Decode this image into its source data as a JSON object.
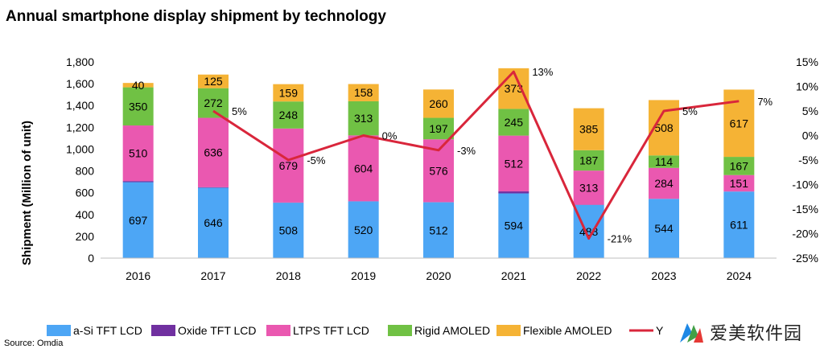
{
  "title": "Annual smartphone display shipment by technology",
  "source": "Source: Omdia",
  "watermark_text": "爱美软件园",
  "chart_data": {
    "type": "bar",
    "stacked": true,
    "categories": [
      "2016",
      "2017",
      "2018",
      "2019",
      "2020",
      "2021",
      "2022",
      "2023",
      "2024"
    ],
    "ylabel": "Shipment (Million of unit)",
    "ylim": [
      0,
      1800
    ],
    "y_ticks": [
      "0",
      "200",
      "400",
      "600",
      "800",
      "1,000",
      "1,200",
      "1,400",
      "1,600",
      "1,800"
    ],
    "y2lim": [
      -25,
      15
    ],
    "y2_ticks": [
      "-25%",
      "-20%",
      "-15%",
      "-10%",
      "-5%",
      "0%",
      "5%",
      "10%",
      "15%"
    ],
    "grid": false,
    "legend_position": "bottom",
    "series": [
      {
        "name": "a-Si TFT LCD",
        "color": "#4DA6F5",
        "values": [
          697,
          646,
          508,
          520,
          512,
          594,
          488,
          544,
          611
        ],
        "labels": [
          "697",
          "646",
          "508",
          "520",
          "512",
          "594",
          "488",
          "544",
          "611"
        ]
      },
      {
        "name": "Oxide TFT LCD",
        "color": "#7030A0",
        "values": [
          10,
          5,
          2,
          2,
          2,
          18,
          2,
          0,
          0
        ],
        "labels": [
          "",
          "",
          "",
          "",
          "",
          "",
          "",
          "",
          ""
        ]
      },
      {
        "name": "LTPS TFT LCD",
        "color": "#EA58B0",
        "values": [
          510,
          636,
          679,
          604,
          576,
          512,
          313,
          284,
          151
        ],
        "labels": [
          "510",
          "636",
          "679",
          "604",
          "576",
          "512",
          "313",
          "284",
          "151"
        ]
      },
      {
        "name": "Rigid AMOLED",
        "color": "#70C144",
        "values": [
          350,
          272,
          248,
          313,
          197,
          245,
          187,
          114,
          167
        ],
        "labels": [
          "350",
          "272",
          "248",
          "313",
          "197",
          "245",
          "187",
          "114",
          "167"
        ]
      },
      {
        "name": "Flexible AMOLED",
        "color": "#F5B335",
        "values": [
          40,
          125,
          159,
          158,
          260,
          373,
          385,
          508,
          617
        ],
        "labels": [
          "40",
          "125",
          "159",
          "158",
          "260",
          "373",
          "385",
          "508",
          "617"
        ]
      }
    ],
    "line": {
      "name": "Y",
      "color": "#D9263B",
      "axis": "right",
      "values": [
        null,
        5,
        -5,
        0,
        -3,
        13,
        -21,
        5,
        7
      ],
      "labels": [
        "",
        "5%",
        "-5%",
        "0%",
        "-3%",
        "13%",
        "-21%",
        "5%",
        "7%"
      ]
    }
  }
}
